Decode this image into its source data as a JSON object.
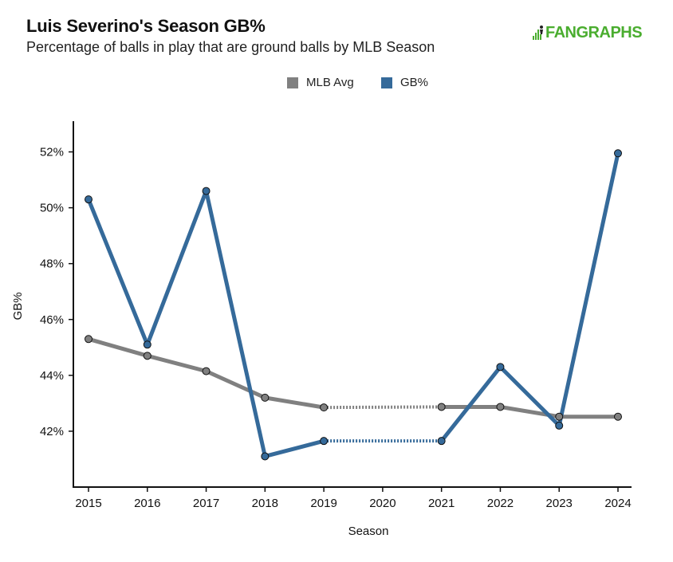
{
  "header": {
    "title": "Luis Severino's Season GB%",
    "subtitle": "Percentage of balls in play that are ground balls by MLB Season",
    "logo_text": "FANGRAPHS"
  },
  "colors": {
    "mlb_avg": "#808080",
    "gb": "#356a9a",
    "logo": "#4aad2f"
  },
  "chart_data": {
    "type": "line",
    "title": "Luis Severino's Season GB%",
    "subtitle": "Percentage of balls in play that are ground balls by MLB Season",
    "xlabel": "Season",
    "ylabel": "GB%",
    "x": [
      2015,
      2016,
      2017,
      2018,
      2019,
      2020,
      2021,
      2022,
      2023,
      2024
    ],
    "xticks": [
      "2015",
      "2016",
      "2017",
      "2018",
      "2019",
      "2020",
      "2021",
      "2022",
      "2023",
      "2024"
    ],
    "yticks": [
      "42%",
      "44%",
      "46%",
      "48%",
      "50%",
      "52%"
    ],
    "ytick_values": [
      42,
      44,
      46,
      48,
      50,
      52
    ],
    "ylim": [
      40.0,
      53.1
    ],
    "legend_position": "top-center",
    "grid": false,
    "series": [
      {
        "name": "MLB Avg",
        "color": "#808080",
        "points": [
          [
            2015,
            45.3
          ],
          [
            2016,
            44.7
          ],
          [
            2017,
            44.15
          ],
          [
            2018,
            43.2
          ],
          [
            2019,
            42.85
          ],
          [
            2021,
            42.87
          ],
          [
            2022,
            42.87
          ],
          [
            2023,
            42.52
          ],
          [
            2024,
            42.52
          ]
        ],
        "dashed_gap": [
          2019,
          2021
        ]
      },
      {
        "name": "GB%",
        "color": "#356a9a",
        "points": [
          [
            2015,
            50.3
          ],
          [
            2016,
            45.1
          ],
          [
            2017,
            50.6
          ],
          [
            2018,
            41.1
          ],
          [
            2019,
            41.65
          ],
          [
            2021,
            41.65
          ],
          [
            2022,
            44.3
          ],
          [
            2023,
            42.2
          ],
          [
            2024,
            51.95
          ]
        ],
        "dashed_gap": [
          2019,
          2021
        ]
      }
    ]
  }
}
